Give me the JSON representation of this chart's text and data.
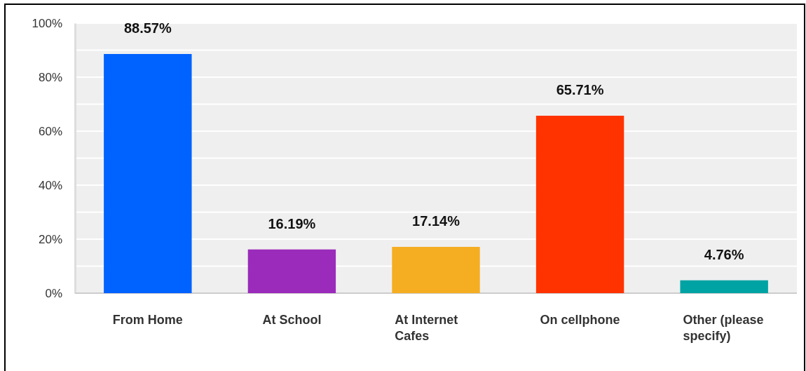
{
  "chart_data": {
    "type": "bar",
    "categories": [
      "From Home",
      "At School",
      "At Internet Cafes",
      "On cellphone",
      "Other (please specify)"
    ],
    "values": [
      88.57,
      16.19,
      17.14,
      65.71,
      4.76
    ],
    "colors": [
      "#0062ff",
      "#9a2bbb",
      "#f5ae22",
      "#ff3300",
      "#00a3a3"
    ],
    "value_labels": [
      "88.57%",
      "16.19%",
      "17.14%",
      "65.71%",
      "4.76%"
    ],
    "ylim": [
      0,
      100
    ],
    "yticks": [
      {
        "value": 0,
        "label": "0%"
      },
      {
        "value": 10,
        "label": null
      },
      {
        "value": 20,
        "label": "20%"
      },
      {
        "value": 30,
        "label": null
      },
      {
        "value": 40,
        "label": "40%"
      },
      {
        "value": 50,
        "label": null
      },
      {
        "value": 60,
        "label": "60%"
      },
      {
        "value": 70,
        "label": null
      },
      {
        "value": 80,
        "label": "80%"
      },
      {
        "value": 90,
        "label": null
      },
      {
        "value": 100,
        "label": "100%"
      }
    ],
    "grid": true
  }
}
